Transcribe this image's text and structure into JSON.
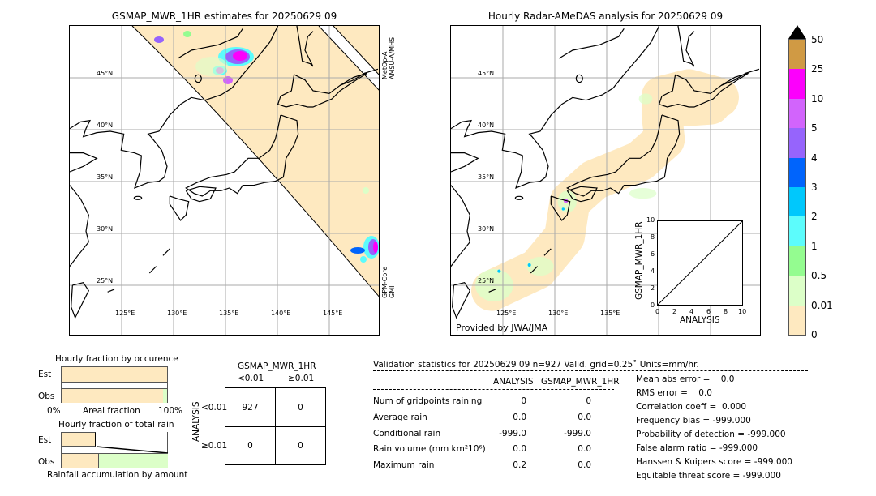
{
  "left_map": {
    "title": "GSMAP_MWR_1HR estimates for 20250629 09",
    "sensor_top": "MetOp-A\nAMSU-A/MHS",
    "sensor_top_l1": "MetOp-A",
    "sensor_top_l2": "AMSU-A/MHS",
    "sensor_bottom_l1": "GPM-Core",
    "sensor_bottom_l2": "GMI"
  },
  "right_map": {
    "title": "Hourly Radar-AMeDAS analysis for 20250629 09",
    "credit": "Provided by JWA/JMA"
  },
  "lat_labels": [
    "45°N",
    "40°N",
    "35°N",
    "30°N",
    "25°N"
  ],
  "lon_labels": [
    "125°E",
    "130°E",
    "135°E",
    "140°E",
    "145°E"
  ],
  "inset": {
    "ylabel": "GSMAP_MWR_1HR",
    "xlabel": "ANALYSIS",
    "ticks": [
      "0",
      "2",
      "4",
      "6",
      "8",
      "10"
    ]
  },
  "colorbar": {
    "labels": [
      "0",
      "0.01",
      "0.5",
      "1",
      "2",
      "3",
      "4",
      "5",
      "10",
      "25",
      "50"
    ],
    "colors": [
      "#fee9c0",
      "#dcffc8",
      "#94fc90",
      "#5cfcfc",
      "#00c8fc",
      "#0064fc",
      "#9664fc",
      "#d264fc",
      "#fc00fc",
      "#d09a44"
    ],
    "extend_color": "#000000"
  },
  "occurrence": {
    "title": "Hourly fraction by occurence",
    "est": "Est",
    "obs": "Obs",
    "xmin": "0%",
    "xlabel": "Areal fraction",
    "xmax": "100%",
    "est_fraction": 1.0,
    "obs_fraction": 0.96
  },
  "total_rain": {
    "title": "Hourly fraction of total rain",
    "est": "Est",
    "obs": "Obs",
    "xlabel": "Rainfall accumulation by amount",
    "est_fraction": 0.33,
    "obs_fraction": 0.35
  },
  "contingency": {
    "title": "GSMAP_MWR_1HR",
    "col1": "<0.01",
    "col2": "≥0.01",
    "row1": "<0.01",
    "row2": "≥0.01",
    "ylabel": "ANALYSIS",
    "cells": [
      "927",
      "0",
      "0",
      "0"
    ]
  },
  "stats": {
    "header": "Validation statistics for 20250629 09  n=927 Valid. grid=0.25˚ Units=mm/hr.",
    "col_analysis": "ANALYSIS",
    "col_gsmap": "GSMAP_MWR_1HR",
    "rows": [
      {
        "label": "Num of gridpoints raining",
        "a": "0",
        "g": "0"
      },
      {
        "label": "Average rain",
        "a": "0.0",
        "g": "0.0"
      },
      {
        "label": "Conditional rain",
        "a": "-999.0",
        "g": "-999.0"
      },
      {
        "label": "Rain volume (mm km²10⁶)",
        "a": "0.0",
        "g": "0.0"
      },
      {
        "label": "Maximum rain",
        "a": "0.2",
        "g": "0.0"
      }
    ],
    "scores": [
      "Mean abs error =    0.0",
      "RMS error =    0.0",
      "Correlation coeff =  0.000",
      "Frequency bias = -999.000",
      "Probability of detection = -999.000",
      "False alarm ratio = -999.000",
      "Hanssen & Kuipers score = -999.000",
      "Equitable threat score = -999.000"
    ]
  }
}
